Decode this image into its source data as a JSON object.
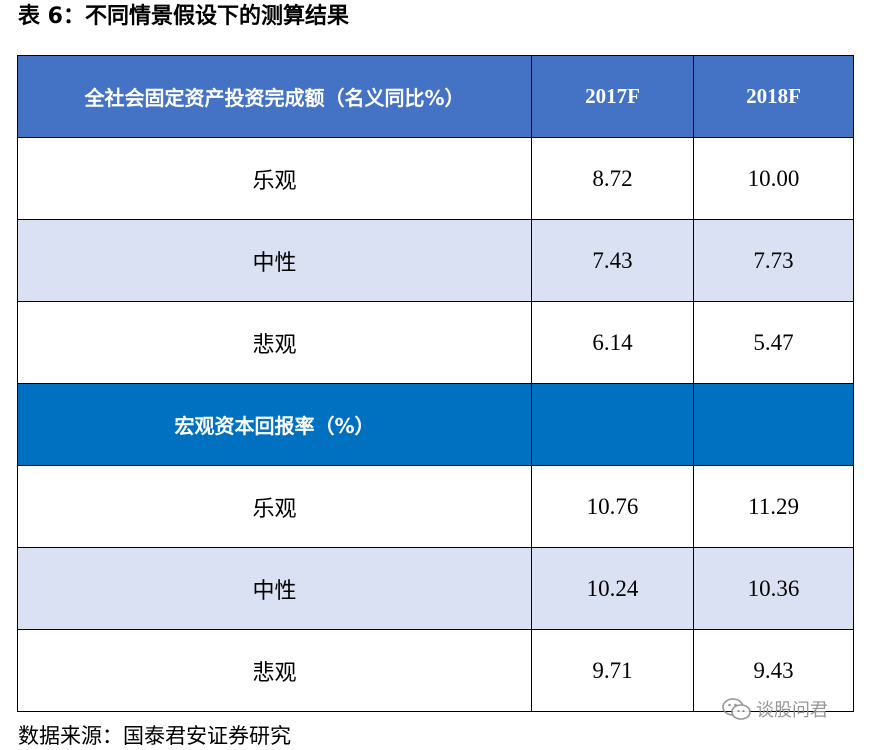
{
  "title": "表 6：不同情景假设下的测算结果",
  "table": {
    "header": {
      "label": "全社会固定资产投资完成额（名义同比%）",
      "col1": "2017F",
      "col2": "2018F"
    },
    "section1_rows": [
      {
        "label": "乐观",
        "v2017": "8.72",
        "v2018": "10.00"
      },
      {
        "label": "中性",
        "v2017": "7.43",
        "v2018": "7.73"
      },
      {
        "label": "悲观",
        "v2017": "6.14",
        "v2018": "5.47"
      }
    ],
    "section2_header": {
      "label": "宏观资本回报率（%）",
      "col1": "",
      "col2": ""
    },
    "section2_rows": [
      {
        "label": "乐观",
        "v2017": "10.76",
        "v2018": "11.29"
      },
      {
        "label": "中性",
        "v2017": "10.24",
        "v2018": "10.36"
      },
      {
        "label": "悲观",
        "v2017": "9.71",
        "v2018": "9.43"
      }
    ]
  },
  "source": "数据来源：国泰君安证券研究",
  "watermark": {
    "icon": "wechat-icon",
    "text": "谈股问君"
  },
  "colors": {
    "header_blue": "#4472c4",
    "section_blue": "#0070c0",
    "alt_row": "#d9e1f2"
  }
}
